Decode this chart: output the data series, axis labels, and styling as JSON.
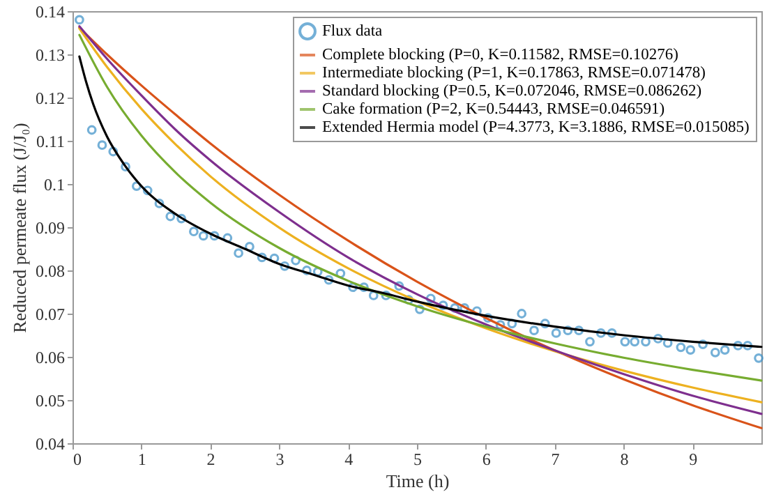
{
  "chart_data": {
    "type": "line",
    "xlabel": "Time (h)",
    "ylabel": "Reduced permeate flux (J/J₀)",
    "xlim": [
      0,
      10
    ],
    "xticks": [
      0,
      1,
      2,
      3,
      4,
      5,
      6,
      7,
      8,
      9
    ],
    "ylim": [
      0.04,
      0.14
    ],
    "yticks": [
      0.04,
      0.05,
      0.06,
      0.07,
      0.08,
      0.09,
      0.1,
      0.11,
      0.12,
      0.13,
      0.14
    ],
    "legend": "top right",
    "line_style": "solid",
    "series": [
      {
        "name": "Flux data",
        "type": "scatter",
        "color": "#3a8fc7",
        "x": [
          0.1,
          0.28,
          0.43,
          0.59,
          0.77,
          0.93,
          1.09,
          1.26,
          1.42,
          1.58,
          1.76,
          1.9,
          2.06,
          2.25,
          2.41,
          2.57,
          2.75,
          2.93,
          3.08,
          3.24,
          3.4,
          3.56,
          3.72,
          3.89,
          4.07,
          4.23,
          4.37,
          4.55,
          4.74,
          4.88,
          5.04,
          5.2,
          5.38,
          5.55,
          5.69,
          5.87,
          6.03,
          6.21,
          6.38,
          6.52,
          6.7,
          6.86,
          7.02,
          7.19,
          7.35,
          7.51,
          7.67,
          7.83,
          8.02,
          8.16,
          8.32,
          8.5,
          8.64,
          8.83,
          8.97,
          9.15,
          9.33,
          9.47,
          9.66,
          9.8,
          9.96
        ],
        "values": [
          0.138,
          0.1125,
          0.109,
          0.1075,
          0.104,
          0.0995,
          0.0985,
          0.0955,
          0.0925,
          0.092,
          0.089,
          0.088,
          0.088,
          0.0875,
          0.084,
          0.0855,
          0.083,
          0.0828,
          0.081,
          0.0823,
          0.08,
          0.0797,
          0.0778,
          0.0793,
          0.0761,
          0.0761,
          0.0742,
          0.0742,
          0.0764,
          0.0732,
          0.071,
          0.0735,
          0.0719,
          0.0713,
          0.0713,
          0.0706,
          0.069,
          0.0674,
          0.0677,
          0.07,
          0.0661,
          0.0677,
          0.0655,
          0.0661,
          0.0661,
          0.0635,
          0.0655,
          0.0655,
          0.0635,
          0.0635,
          0.0635,
          0.0642,
          0.0632,
          0.0622,
          0.0616,
          0.0629,
          0.061,
          0.0616,
          0.0626,
          0.0626,
          0.0597
        ]
      },
      {
        "name": "Complete blocking (P=0, K=0.11582, RMSE=0.10276)",
        "color": "#d95319",
        "x": [
          0.1,
          0.5,
          1,
          1.5,
          2,
          3,
          4,
          5,
          6,
          7,
          8,
          9,
          10
        ],
        "values": [
          0.1362,
          0.13,
          0.1228,
          0.116,
          0.1094,
          0.0975,
          0.0869,
          0.0774,
          0.069,
          0.0615,
          0.0548,
          0.0488,
          0.0435
        ]
      },
      {
        "name": "Intermediate blocking (P=1, K=0.17863, RMSE=0.071478)",
        "color": "#edb120",
        "x": [
          0.1,
          0.5,
          1,
          1.5,
          2,
          3,
          4,
          5,
          6,
          7,
          8,
          9,
          10
        ],
        "values": [
          0.136,
          0.1271,
          0.1174,
          0.1091,
          0.1018,
          0.0899,
          0.0805,
          0.0729,
          0.0666,
          0.0613,
          0.0568,
          0.0529,
          0.0495
        ]
      },
      {
        "name": "Standard blocking (P=0.5, K=0.072046, RMSE=0.086262)",
        "color": "#7e2f8e",
        "x": [
          0.1,
          0.5,
          1,
          1.5,
          2,
          3,
          4,
          5,
          6,
          7,
          8,
          9,
          10
        ],
        "values": [
          0.1365,
          0.129,
          0.1205,
          0.1125,
          0.1055,
          0.0935,
          0.083,
          0.0745,
          0.0675,
          0.0615,
          0.056,
          0.051,
          0.0468
        ]
      },
      {
        "name": "Cake formation (P=2, K=0.54443, RMSE=0.046591)",
        "color": "#77ac30",
        "x": [
          0.1,
          0.5,
          1,
          1.5,
          2,
          3,
          4,
          5,
          6,
          7,
          8,
          9,
          10
        ],
        "values": [
          0.1345,
          0.1225,
          0.1112,
          0.1026,
          0.0957,
          0.0852,
          0.0776,
          0.0717,
          0.067,
          0.0631,
          0.0598,
          0.057,
          0.0545
        ]
      },
      {
        "name": "Extended Hermia model (P=4.3773, K=3.1886, RMSE=0.015085)",
        "color": "#000000",
        "x": [
          0.1,
          0.2,
          0.3,
          0.5,
          0.75,
          1,
          1.5,
          2,
          2.5,
          3,
          3.5,
          4,
          4.5,
          5,
          6,
          7,
          8,
          9,
          10
        ],
        "values": [
          0.1295,
          0.1235,
          0.1185,
          0.111,
          0.1045,
          0.0995,
          0.093,
          0.0885,
          0.085,
          0.0815,
          0.079,
          0.0765,
          0.0748,
          0.0728,
          0.0695,
          0.067,
          0.065,
          0.0635,
          0.0623
        ]
      }
    ]
  }
}
